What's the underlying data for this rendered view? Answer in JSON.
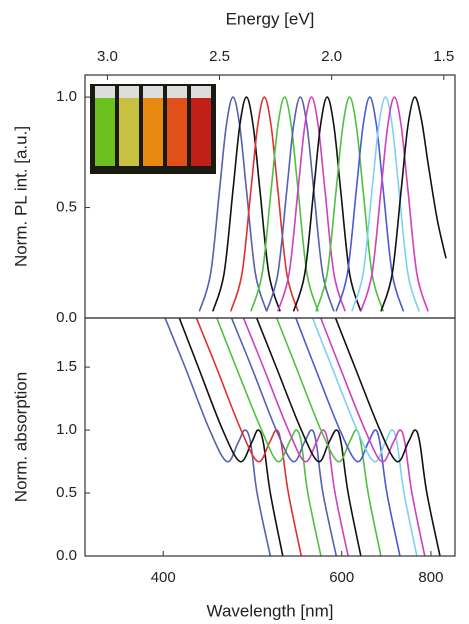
{
  "chart_data": [
    {
      "type": "line",
      "x_label": "Energy [eV]",
      "y_label": "Norm. PL int. [a.u.]",
      "xlim": [
        3.1,
        1.45
      ],
      "xticks": [
        {
          "value": 3,
          "label": "3.0"
        },
        2.5,
        {
          "value": 2,
          "label": "2.0"
        },
        1.5
      ],
      "ylim": [
        0,
        1.1
      ],
      "yticks": [
        {
          "value": 0,
          "label": "0.0"
        },
        0.5,
        {
          "value": 1,
          "label": "1.0"
        }
      ],
      "series": [
        {
          "color": "#5560b0",
          "x": [
            2.59,
            2.54,
            2.5,
            2.47,
            2.44,
            2.41,
            2.38,
            2.34,
            2.29
          ],
          "values": [
            0.03,
            0.2,
            0.58,
            0.87,
            1,
            0.87,
            0.58,
            0.2,
            0.03
          ]
        },
        {
          "color": "#111111",
          "x": [
            2.53,
            2.48,
            2.44,
            2.41,
            2.38,
            2.35,
            2.32,
            2.28,
            2.23
          ],
          "values": [
            0.03,
            0.2,
            0.58,
            0.87,
            1,
            0.87,
            0.58,
            0.2,
            0.03
          ]
        },
        {
          "color": "#e03030",
          "x": [
            2.45,
            2.4,
            2.36,
            2.33,
            2.3,
            2.27,
            2.24,
            2.2,
            2.15
          ],
          "values": [
            0.03,
            0.2,
            0.58,
            0.87,
            1,
            0.87,
            0.58,
            0.2,
            0.03
          ]
        },
        {
          "color": "#50c040",
          "x": [
            2.36,
            2.31,
            2.27,
            2.24,
            2.21,
            2.18,
            2.15,
            2.11,
            2.06
          ],
          "values": [
            0.03,
            0.2,
            0.58,
            0.87,
            1,
            0.87,
            0.58,
            0.2,
            0.03
          ]
        },
        {
          "color": "#5560b0",
          "x": [
            2.29,
            2.24,
            2.2,
            2.17,
            2.14,
            2.11,
            2.08,
            2.04,
            1.99
          ],
          "values": [
            0.03,
            0.2,
            0.58,
            0.87,
            1,
            0.87,
            0.58,
            0.2,
            0.03
          ]
        },
        {
          "color": "#d040c0",
          "x": [
            2.24,
            2.19,
            2.15,
            2.12,
            2.09,
            2.06,
            2.03,
            1.99,
            1.94
          ],
          "values": [
            0.03,
            0.2,
            0.58,
            0.87,
            1,
            0.87,
            0.58,
            0.2,
            0.03
          ]
        },
        {
          "color": "#111111",
          "x": [
            2.17,
            2.12,
            2.08,
            2.05,
            2.02,
            1.99,
            1.96,
            1.92,
            1.87
          ],
          "values": [
            0.03,
            0.2,
            0.58,
            0.87,
            1,
            0.87,
            0.58,
            0.2,
            0.03
          ]
        },
        {
          "color": "#50c040",
          "x": [
            2.07,
            2.02,
            1.98,
            1.95,
            1.92,
            1.89,
            1.86,
            1.82,
            1.77
          ],
          "values": [
            0.03,
            0.2,
            0.58,
            0.87,
            1,
            0.87,
            0.58,
            0.2,
            0.03
          ]
        },
        {
          "color": "#4a5ad0",
          "x": [
            1.98,
            1.93,
            1.89,
            1.86,
            1.83,
            1.8,
            1.77,
            1.73,
            1.68
          ],
          "values": [
            0.03,
            0.2,
            0.58,
            0.87,
            1,
            0.87,
            0.58,
            0.2,
            0.03
          ]
        },
        {
          "color": "#80d0f0",
          "x": [
            1.91,
            1.86,
            1.82,
            1.79,
            1.76,
            1.73,
            1.7,
            1.66,
            1.61
          ],
          "values": [
            0.03,
            0.2,
            0.58,
            0.87,
            1,
            0.87,
            0.58,
            0.2,
            0.03
          ]
        },
        {
          "color": "#d040c0",
          "x": [
            1.87,
            1.82,
            1.78,
            1.75,
            1.72,
            1.69,
            1.66,
            1.62,
            1.57
          ],
          "values": [
            0.03,
            0.2,
            0.58,
            0.87,
            1,
            0.87,
            0.58,
            0.2,
            0.03
          ]
        },
        {
          "color": "#111111",
          "x": [
            1.78,
            1.73,
            1.69,
            1.66,
            1.63,
            1.6,
            1.57,
            1.53,
            1.49
          ],
          "values": [
            0.03,
            0.2,
            0.58,
            0.87,
            1,
            0.9,
            0.7,
            0.45,
            0.27
          ]
        }
      ]
    },
    {
      "type": "line",
      "x_label": "Wavelength [nm]",
      "y_label": "Norm. absorption",
      "x_scale": "reciprocal",
      "xlim": [
        349,
        879
      ],
      "xticks": [
        400,
        600,
        800
      ],
      "ylim": [
        0,
        1.89
      ],
      "yticks": [
        {
          "value": 0,
          "label": "0.0"
        },
        0.5,
        {
          "value": 1,
          "label": "1.0"
        },
        1.5
      ],
      "series": [
        {
          "color": "#5560b0",
          "x": [
            500,
            485,
            478,
            472,
            465,
            454,
            438,
            417,
            401
          ],
          "values": [
            0,
            0.5,
            0.9,
            1,
            0.9,
            0.75,
            1,
            1.5,
            1.9
          ]
        },
        {
          "color": "#111111",
          "x": [
            515,
            500,
            492,
            486,
            479,
            467,
            450,
            428,
            412
          ],
          "values": [
            0,
            0.5,
            0.9,
            1,
            0.9,
            0.75,
            1,
            1.5,
            1.9
          ]
        },
        {
          "color": "#e03030",
          "x": [
            539,
            522,
            513,
            507,
            499,
            486,
            468,
            444,
            426
          ],
          "values": [
            0,
            0.5,
            0.9,
            1,
            0.9,
            0.75,
            1,
            1.5,
            1.9
          ]
        },
        {
          "color": "#50c040",
          "x": [
            567,
            548,
            539,
            532,
            523,
            509,
            490,
            463,
            444
          ],
          "values": [
            0,
            0.5,
            0.9,
            1,
            0.9,
            0.75,
            1,
            1.5,
            1.9
          ]
        },
        {
          "color": "#5560b0",
          "x": [
            591,
            570,
            560,
            553,
            543,
            528,
            507,
            479,
            458
          ],
          "values": [
            0,
            0.5,
            0.9,
            1,
            0.9,
            0.75,
            1,
            1.5,
            1.9
          ]
        },
        {
          "color": "#d040c0",
          "x": [
            611,
            589,
            578,
            570,
            560,
            544,
            522,
            492,
            470
          ],
          "values": [
            0,
            0.5,
            0.9,
            1,
            0.9,
            0.75,
            1,
            1.5,
            1.9
          ]
        },
        {
          "color": "#111111",
          "x": [
            634,
            611,
            599,
            591,
            579,
            563,
            539,
            507,
            484
          ],
          "values": [
            0,
            0.5,
            0.9,
            1,
            0.9,
            0.75,
            1,
            1.5,
            1.9
          ]
        },
        {
          "color": "#50c040",
          "x": [
            674,
            648,
            634,
            625,
            613,
            594,
            567,
            532,
            507
          ],
          "values": [
            0,
            0.5,
            0.9,
            1,
            0.9,
            0.75,
            1,
            1.5,
            1.9
          ]
        },
        {
          "color": "#4a5ad0",
          "x": [
            717,
            687,
            672,
            662,
            648,
            627,
            597,
            558,
            531
          ],
          "values": [
            0,
            0.5,
            0.9,
            1,
            0.9,
            0.75,
            1,
            1.5,
            1.9
          ]
        },
        {
          "color": "#80d0f0",
          "x": [
            760,
            727,
            710,
            698,
            683,
            660,
            627,
            584,
            554
          ],
          "values": [
            0,
            0.5,
            0.9,
            1,
            0.9,
            0.75,
            1,
            1.5,
            1.9
          ]
        },
        {
          "color": "#d040c0",
          "x": [
            782,
            747,
            729,
            717,
            701,
            676,
            642,
            597,
            566
          ],
          "values": [
            0,
            0.5,
            0.9,
            1,
            0.9,
            0.75,
            1,
            1.5,
            1.9
          ]
        },
        {
          "color": "#111111",
          "x": [
            828,
            788,
            768,
            755,
            737,
            710,
            672,
            623,
            589
          ],
          "values": [
            0,
            0.5,
            0.9,
            1,
            0.9,
            0.75,
            1,
            1.5,
            1.9
          ]
        }
      ]
    }
  ]
}
